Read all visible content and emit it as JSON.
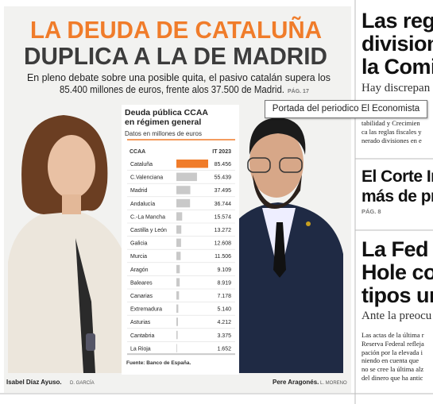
{
  "left": {
    "headline": [
      "LA DEUDA DE CATALUÑA",
      "DUPLICA A LA DE MADRID"
    ],
    "lead": [
      "En pleno debate sobre una posible quita, el pasivo catalán supera los",
      "85.400 millones de euros, frente alos 37.500 de Madrid."
    ],
    "lead_page": "PÁG. 17",
    "captions": [
      {
        "name": "Isabel Díaz Ayuso.",
        "credit": "D. GARCÍA"
      },
      {
        "name": "Pere Aragonés.",
        "credit": "L. MORENO"
      }
    ]
  },
  "chart": {
    "type": "bar",
    "title": [
      "Deuda pública CCAA",
      "en régimen general"
    ],
    "subtitle": "Datos en millones de euros",
    "headers": [
      "CCAA",
      "IT 2023"
    ],
    "categories": [
      "Cataluña",
      "C.Valenciana",
      "Madrid",
      "Andalucía",
      "C.-La Mancha",
      "Castilla y León",
      "Galicia",
      "Murcia",
      "Aragón",
      "Baleares",
      "Canarias",
      "Extremadura",
      "Asturias",
      "Cantabria",
      "La Rioja"
    ],
    "values": [
      85456,
      55439,
      37495,
      36744,
      15574,
      13272,
      12608,
      11506,
      9109,
      8919,
      7178,
      5140,
      4212,
      3375,
      1652
    ],
    "value_labels": [
      "85.456",
      "55.439",
      "37.495",
      "36.744",
      "15.574",
      "13.272",
      "12.608",
      "11.506",
      "9.109",
      "8.919",
      "7.178",
      "5.140",
      "4.212",
      "3.375",
      "1.652"
    ],
    "colors": [
      "#f07c2a",
      "#c9c9c9"
    ],
    "source": "Fuente: Banco de España."
  },
  "right": {
    "story1": {
      "headline": [
        "Las regl",
        "division",
        "la Comis"
      ],
      "deck": "Hay discrepan",
      "body": [
        "tabilidad y Crecimien",
        "ca las reglas fiscales y",
        "nerado divisiones en e"
      ]
    },
    "story2": {
      "headline": [
        "El Corte In",
        "más de pr"
      ],
      "page": "PÁG. 8"
    },
    "story3": {
      "headline": [
        "La Fed ll",
        "Hole cor",
        "tipos un"
      ],
      "deck": "Ante la preocu",
      "body": [
        "Las actas de la última r",
        "Reserva Federal refleja",
        "pación por la elevada i",
        "niendo en cuenta que",
        "no se cree la última alz",
        "del dinero que ha antic"
      ]
    }
  },
  "tooltip": "Portada del periodico El Economista"
}
